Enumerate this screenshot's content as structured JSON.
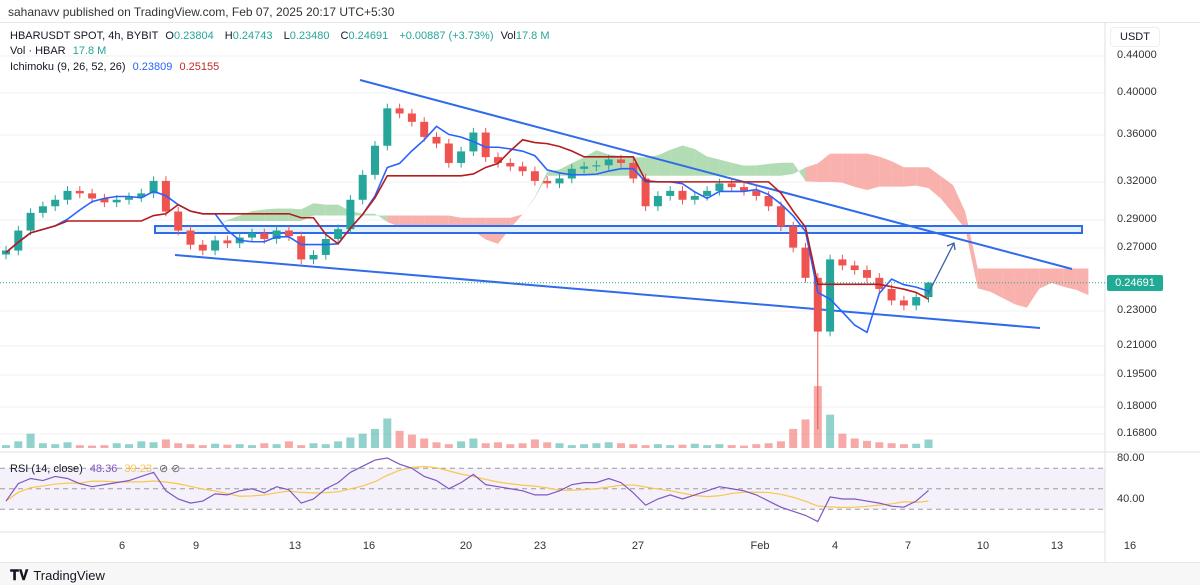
{
  "header": {
    "published": "sahanavv published on TradingView.com, Feb 07, 2025 20:17 UTC+5:30"
  },
  "legend": {
    "symbol": "HBARUSDT SPOT, 4h, BYBIT",
    "o_label": "O",
    "o": "0.23804",
    "h_label": "H",
    "h": "0.24743",
    "l_label": "L",
    "l": "0.23480",
    "c_label": "C",
    "c": "0.24691",
    "change": "+0.00887 (+3.73%)",
    "vol_label": "Vol",
    "vol": "17.8 M",
    "vol_series": "Vol · HBAR",
    "vol_series_value": "17.8 M",
    "ichimoku": "Ichimoku (9, 26, 52, 26)",
    "ichimoku_conv": "0.23809",
    "ichimoku_base": "0.25155",
    "rsi": "RSI (14, close)",
    "rsi_value": "48.36",
    "rsi_ma": "39.23"
  },
  "price_axis": {
    "currency": "USDT",
    "ticks": [
      "0.44000",
      "0.40000",
      "0.36000",
      "0.32000",
      "0.29000",
      "0.27000",
      "0.23000",
      "0.21000",
      "0.19500",
      "0.18000",
      "0.16800"
    ],
    "last_price": "0.24691",
    "rsi_ticks": [
      "80.00",
      "40.00"
    ]
  },
  "time_axis": {
    "ticks": [
      "6",
      "9",
      "13",
      "16",
      "20",
      "23",
      "27",
      "Feb",
      "4",
      "7",
      "10",
      "13",
      "16"
    ]
  },
  "footer": {
    "brand": "TradingView"
  },
  "colors": {
    "up": "#26a69a",
    "down": "#ef5350",
    "conv": "#2962ff",
    "base": "#b71c1c",
    "cloud_up": "#a5d6a7",
    "cloud_down": "#f7a39d",
    "rsi": "#7e57c2",
    "rsi_ma": "#f9c74f",
    "drawing": "#2f6bea"
  },
  "chart_data": {
    "type": "candlestick",
    "title": "HBARUSDT SPOT, 4h, BYBIT",
    "scale": "log",
    "ylim": [
      0.162,
      0.46
    ],
    "note_resolution": "approximated at 12h steps",
    "closes": [
      0.268,
      0.282,
      0.295,
      0.3,
      0.305,
      0.312,
      0.31,
      0.306,
      0.303,
      0.305,
      0.307,
      0.31,
      0.32,
      0.296,
      0.282,
      0.272,
      0.268,
      0.275,
      0.273,
      0.277,
      0.28,
      0.276,
      0.282,
      0.278,
      0.262,
      0.265,
      0.276,
      0.283,
      0.305,
      0.325,
      0.35,
      0.385,
      0.38,
      0.372,
      0.358,
      0.352,
      0.335,
      0.345,
      0.362,
      0.34,
      0.335,
      0.332,
      0.328,
      0.32,
      0.318,
      0.322,
      0.33,
      0.332,
      0.333,
      0.338,
      0.335,
      0.322,
      0.3,
      0.308,
      0.312,
      0.305,
      0.308,
      0.312,
      0.318,
      0.315,
      0.312,
      0.308,
      0.3,
      0.285,
      0.27,
      0.25,
      0.218,
      0.262,
      0.258,
      0.255,
      0.25,
      0.243,
      0.236,
      0.233,
      0.238,
      0.24691
    ],
    "last_candle": {
      "open": 0.23804,
      "high": 0.24743,
      "low": 0.2348,
      "close": 0.24691
    },
    "spike_low": {
      "index": 66,
      "low": 0.17
    },
    "volumes_m": [
      6,
      14,
      30,
      10,
      8,
      12,
      6,
      5,
      6,
      10,
      8,
      14,
      12,
      18,
      10,
      8,
      6,
      9,
      7,
      8,
      6,
      10,
      8,
      14,
      6,
      10,
      8,
      14,
      22,
      30,
      40,
      62,
      36,
      28,
      20,
      12,
      8,
      14,
      20,
      10,
      12,
      8,
      10,
      18,
      12,
      10,
      6,
      8,
      10,
      12,
      10,
      8,
      6,
      8,
      6,
      7,
      9,
      6,
      8,
      6,
      5,
      8,
      10,
      14,
      40,
      60,
      130,
      70,
      30,
      20,
      15,
      12,
      10,
      8,
      9,
      17.8
    ],
    "rsi": [
      38,
      55,
      60,
      58,
      62,
      60,
      55,
      52,
      54,
      56,
      58,
      62,
      66,
      48,
      40,
      36,
      38,
      45,
      44,
      48,
      50,
      46,
      52,
      49,
      36,
      40,
      50,
      56,
      66,
      72,
      78,
      80,
      74,
      70,
      62,
      58,
      50,
      56,
      64,
      54,
      52,
      50,
      48,
      44,
      44,
      48,
      54,
      56,
      56,
      60,
      56,
      46,
      34,
      40,
      44,
      40,
      44,
      48,
      52,
      50,
      48,
      44,
      38,
      32,
      28,
      24,
      18,
      42,
      40,
      40,
      38,
      36,
      33,
      32,
      38,
      48.36
    ],
    "rsi_bands": [
      70,
      50,
      30
    ],
    "ichimoku_params": {
      "conversion": 9,
      "base": 26,
      "span_b": 52,
      "displacement": 26
    }
  }
}
